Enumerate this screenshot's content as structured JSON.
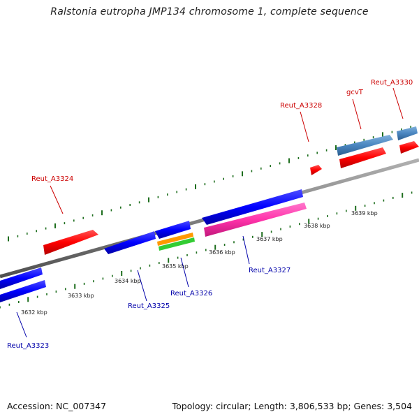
{
  "title": "Ralstonia eutropha JMP134 chromosome 1, complete sequence",
  "footer": {
    "accession": "Accession: NC_007347",
    "topology": "Topology: circular; Length: 3,806,533 bp; Genes: 3,504"
  },
  "colors": {
    "backbone": "#808080",
    "tick": "#1e6e1e",
    "forward_gene": "#ff0000",
    "reverse_gene": "#0000ff",
    "forward_label": "#cc0000",
    "reverse_label": "#0000aa",
    "rna_steelblue": "#4a86c0",
    "pink": "#ff33aa",
    "orange": "#ff9900",
    "green": "#33cc33"
  },
  "kbp_labels": [
    "3632 kbp",
    "3633 kbp",
    "3634 kbp",
    "3635 kbp",
    "3636 kbp",
    "3637 kbp",
    "3638 kbp",
    "3639 kbp"
  ],
  "gene_labels": {
    "forward": [
      "Reut_A3324",
      "Reut_A3328",
      "gcvT",
      "Reut_A3330"
    ],
    "reverse": [
      "Reut_A3323",
      "Reut_A3325",
      "Reut_A3326",
      "Reut_A3327"
    ]
  }
}
